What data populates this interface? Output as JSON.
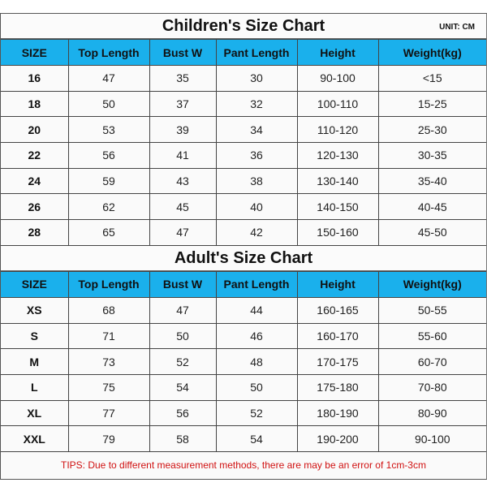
{
  "children": {
    "title": "Children's Size Chart",
    "unit": "UNIT: CM",
    "headers": [
      "SIZE",
      "Top Length",
      "Bust W",
      "Pant Length",
      "Height",
      "Weight(kg)"
    ],
    "rows": [
      [
        "16",
        "47",
        "35",
        "30",
        "90-100",
        "<15"
      ],
      [
        "18",
        "50",
        "37",
        "32",
        "100-110",
        "15-25"
      ],
      [
        "20",
        "53",
        "39",
        "34",
        "110-120",
        "25-30"
      ],
      [
        "22",
        "56",
        "41",
        "36",
        "120-130",
        "30-35"
      ],
      [
        "24",
        "59",
        "43",
        "38",
        "130-140",
        "35-40"
      ],
      [
        "26",
        "62",
        "45",
        "40",
        "140-150",
        "40-45"
      ],
      [
        "28",
        "65",
        "47",
        "42",
        "150-160",
        "45-50"
      ]
    ]
  },
  "adult": {
    "title": "Adult's Size Chart",
    "headers": [
      "SIZE",
      "Top Length",
      "Bust W",
      "Pant Length",
      "Height",
      "Weight(kg)"
    ],
    "rows": [
      [
        "XS",
        "68",
        "47",
        "44",
        "160-165",
        "50-55"
      ],
      [
        "S",
        "71",
        "50",
        "46",
        "160-170",
        "55-60"
      ],
      [
        "M",
        "73",
        "52",
        "48",
        "170-175",
        "60-70"
      ],
      [
        "L",
        "75",
        "54",
        "50",
        "175-180",
        "70-80"
      ],
      [
        "XL",
        "77",
        "56",
        "52",
        "180-190",
        "80-90"
      ],
      [
        "XXL",
        "79",
        "58",
        "54",
        "190-200",
        "90-100"
      ]
    ]
  },
  "tips": "TIPS: Due to different measurement methods, there are may be an error of 1cm-3cm",
  "colors": {
    "header_bg": "#1ab0ec",
    "tips_text": "#d01010"
  }
}
